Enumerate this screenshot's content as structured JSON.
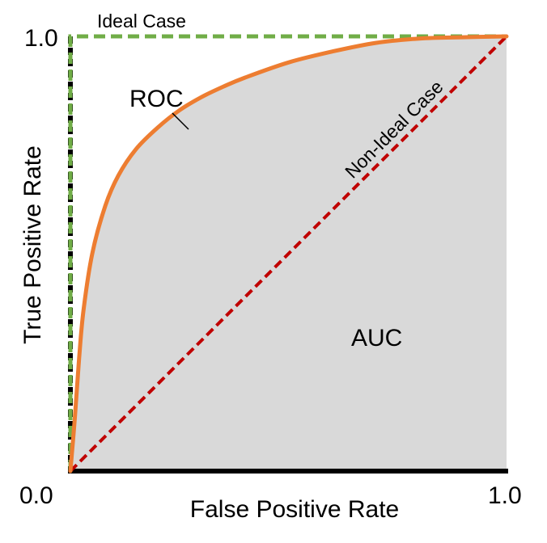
{
  "chart_data": {
    "type": "line",
    "title": "",
    "xlabel": "False Positive Rate",
    "ylabel": "True Positive Rate",
    "xlim": [
      0.0,
      1.0
    ],
    "ylim": [
      0.0,
      1.0
    ],
    "tick_labels": {
      "x_min": "0.0",
      "x_max": "1.0",
      "y_max": "1.0"
    },
    "grid": false,
    "legend": "none",
    "series": [
      {
        "name": "ROC",
        "color": "#ed7d31",
        "style": "solid",
        "x": [
          0.0,
          0.01,
          0.02,
          0.03,
          0.05,
          0.08,
          0.11,
          0.15,
          0.2,
          0.25,
          0.3,
          0.35,
          0.4,
          0.5,
          0.6,
          0.7,
          0.8,
          0.9,
          1.0
        ],
        "y": [
          0.0,
          0.12,
          0.26,
          0.37,
          0.5,
          0.61,
          0.68,
          0.74,
          0.79,
          0.83,
          0.86,
          0.884,
          0.905,
          0.94,
          0.965,
          0.985,
          0.995,
          0.998,
          1.0
        ]
      },
      {
        "name": "Non-Ideal Case",
        "color": "#c00000",
        "style": "dashed",
        "x": [
          0.0,
          1.0
        ],
        "y": [
          0.0,
          1.0
        ]
      },
      {
        "name": "Ideal Case",
        "color": "#70ad47",
        "style": "dashed",
        "x": [
          0.0,
          0.0,
          1.0
        ],
        "y": [
          0.0,
          1.0,
          1.0
        ]
      }
    ],
    "area": {
      "label": "AUC",
      "color": "#d9d9d9",
      "under_series": "ROC"
    },
    "annotations": {
      "roc_label": "ROC",
      "ideal_label": "Ideal Case",
      "nonideal_label": "Non-Ideal Case",
      "auc_label": "AUC"
    }
  }
}
